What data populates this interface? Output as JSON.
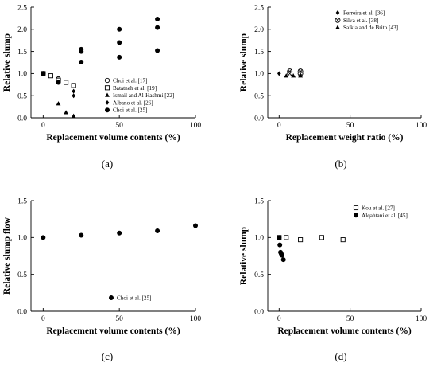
{
  "chart_data": [
    {
      "panel": "(a)",
      "type": "scatter",
      "xlabel": "Replacement volume contents (%)",
      "ylabel": "Relative slump",
      "xlim": [
        -8,
        100
      ],
      "ylim": [
        0,
        2.5
      ],
      "xticks": [
        "0",
        "50",
        "100"
      ],
      "yticks": [
        "0.0",
        "0.5",
        "1.0",
        "1.5",
        "2.0",
        "2.5"
      ],
      "legend_position": "bottom-right",
      "series": [
        {
          "name": "Choi et al. [17]",
          "marker": "circle-open",
          "points": [
            [
              0,
              1.0
            ],
            [
              10,
              0.88
            ],
            [
              10,
              0.85
            ]
          ]
        },
        {
          "name": "Batatneh et al. [19]",
          "marker": "square-open",
          "points": [
            [
              0,
              1.0
            ],
            [
              5,
              0.95
            ],
            [
              10,
              0.85
            ],
            [
              15,
              0.8
            ],
            [
              20,
              0.73
            ]
          ]
        },
        {
          "name": "Ismail and Al-Hashmi [22]",
          "marker": "triangle-filled",
          "points": [
            [
              10,
              0.32
            ],
            [
              15,
              0.12
            ],
            [
              20,
              0.04
            ]
          ]
        },
        {
          "name": "Albano et al. [26]",
          "marker": "diamond-filled",
          "points": [
            [
              10,
              0.8
            ],
            [
              20,
              0.6
            ],
            [
              20,
              0.5
            ]
          ]
        },
        {
          "name": "Choi et al. [25]",
          "marker": "circle-filled",
          "points": [
            [
              0,
              1.0
            ],
            [
              10,
              0.8
            ],
            [
              25,
              1.55
            ],
            [
              25,
              1.5
            ],
            [
              25,
              1.26
            ],
            [
              50,
              2.0
            ],
            [
              50,
              1.7
            ],
            [
              50,
              1.37
            ],
            [
              75,
              2.23
            ],
            [
              75,
              2.04
            ],
            [
              75,
              1.52
            ]
          ]
        }
      ]
    },
    {
      "panel": "(b)",
      "type": "scatter",
      "xlabel": "Replacement weight ratio (%)",
      "ylabel": "Relative slump",
      "xlim": [
        -8,
        100
      ],
      "ylim": [
        0,
        2.5
      ],
      "xticks": [
        "0",
        "50",
        "100"
      ],
      "yticks": [
        "0.0",
        "0.5",
        "1.0",
        "1.5",
        "2.0",
        "2.5"
      ],
      "legend_position": "top-left",
      "series": [
        {
          "name": "Ferreira et al. [36]",
          "marker": "diamond-filled",
          "points": [
            [
              0,
              1.0
            ],
            [
              7.5,
              1.0
            ],
            [
              15,
              1.0
            ]
          ]
        },
        {
          "name": "Silva et al. [38]",
          "marker": "circle-crossed",
          "points": [
            [
              7.5,
              1.05
            ],
            [
              7.5,
              1.0
            ],
            [
              15,
              1.05
            ],
            [
              15,
              1.0
            ]
          ]
        },
        {
          "name": "Saikia and de Brito [43]",
          "marker": "triangle-filled",
          "points": [
            [
              5,
              0.95
            ],
            [
              10,
              0.95
            ],
            [
              15,
              0.95
            ]
          ]
        }
      ]
    },
    {
      "panel": "(c)",
      "type": "scatter",
      "xlabel": "Replacement volume contents (%)",
      "ylabel": "Relative slump flow",
      "xlim": [
        -8,
        100
      ],
      "ylim": [
        0,
        1.5
      ],
      "xticks": [
        "0",
        "50",
        "100"
      ],
      "yticks": [
        "0.0",
        "0.5",
        "1.0",
        "1.5"
      ],
      "legend_position": "bottom-right",
      "series": [
        {
          "name": "Choi et al. [25]",
          "marker": "circle-filled",
          "points": [
            [
              0,
              1.0
            ],
            [
              25,
              1.03
            ],
            [
              50,
              1.06
            ],
            [
              75,
              1.09
            ],
            [
              100,
              1.16
            ]
          ]
        }
      ]
    },
    {
      "panel": "(d)",
      "type": "scatter",
      "xlabel": "Replacement volume contents (%)",
      "ylabel": "Relative slump",
      "xlim": [
        -8,
        100
      ],
      "ylim": [
        0,
        1.5
      ],
      "xticks": [
        "0",
        "50",
        "100"
      ],
      "yticks": [
        "0.0",
        "0.5",
        "1.0",
        "1.5"
      ],
      "legend_position": "top-right",
      "series": [
        {
          "name": "Kou et al. [27]",
          "marker": "square-open",
          "points": [
            [
              0,
              1.0
            ],
            [
              5,
              1.0
            ],
            [
              15,
              0.97
            ],
            [
              30,
              1.0
            ],
            [
              45,
              0.97
            ]
          ]
        },
        {
          "name": "Alqahtani et al. [45]",
          "marker": "circle-filled",
          "points": [
            [
              0,
              1.0
            ],
            [
              0.5,
              0.9
            ],
            [
              1,
              0.8
            ],
            [
              1.5,
              0.78
            ],
            [
              2,
              0.76
            ],
            [
              3,
              0.7
            ]
          ]
        }
      ]
    }
  ]
}
